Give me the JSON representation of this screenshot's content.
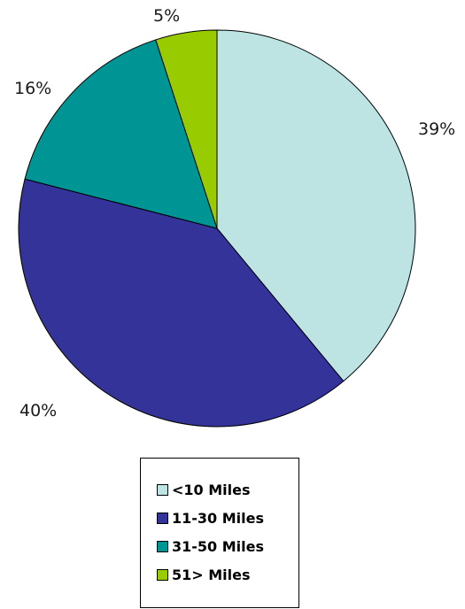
{
  "chart_data": {
    "type": "pie",
    "title": "",
    "slices": [
      {
        "label": "<10 Miles",
        "value": 39,
        "value_label": "39%",
        "color": "#bee3e3"
      },
      {
        "label": "11-30 Miles",
        "value": 40,
        "value_label": "40%",
        "color": "#333399"
      },
      {
        "label": "31-50 Miles",
        "value": 16,
        "value_label": "16%",
        "color": "#009595"
      },
      {
        "label": "51> Miles",
        "value": 5,
        "value_label": "5%",
        "color": "#99cc00"
      }
    ],
    "legend_position": "bottom",
    "slice_order": "clockwise from top"
  },
  "legend": {
    "items": [
      {
        "label": "<10 Miles",
        "color": "#bee3e3"
      },
      {
        "label": "11-30 Miles",
        "color": "#333399"
      },
      {
        "label": "31-50 Miles",
        "color": "#009595"
      },
      {
        "label": "51> Miles",
        "color": "#99cc00"
      }
    ]
  }
}
